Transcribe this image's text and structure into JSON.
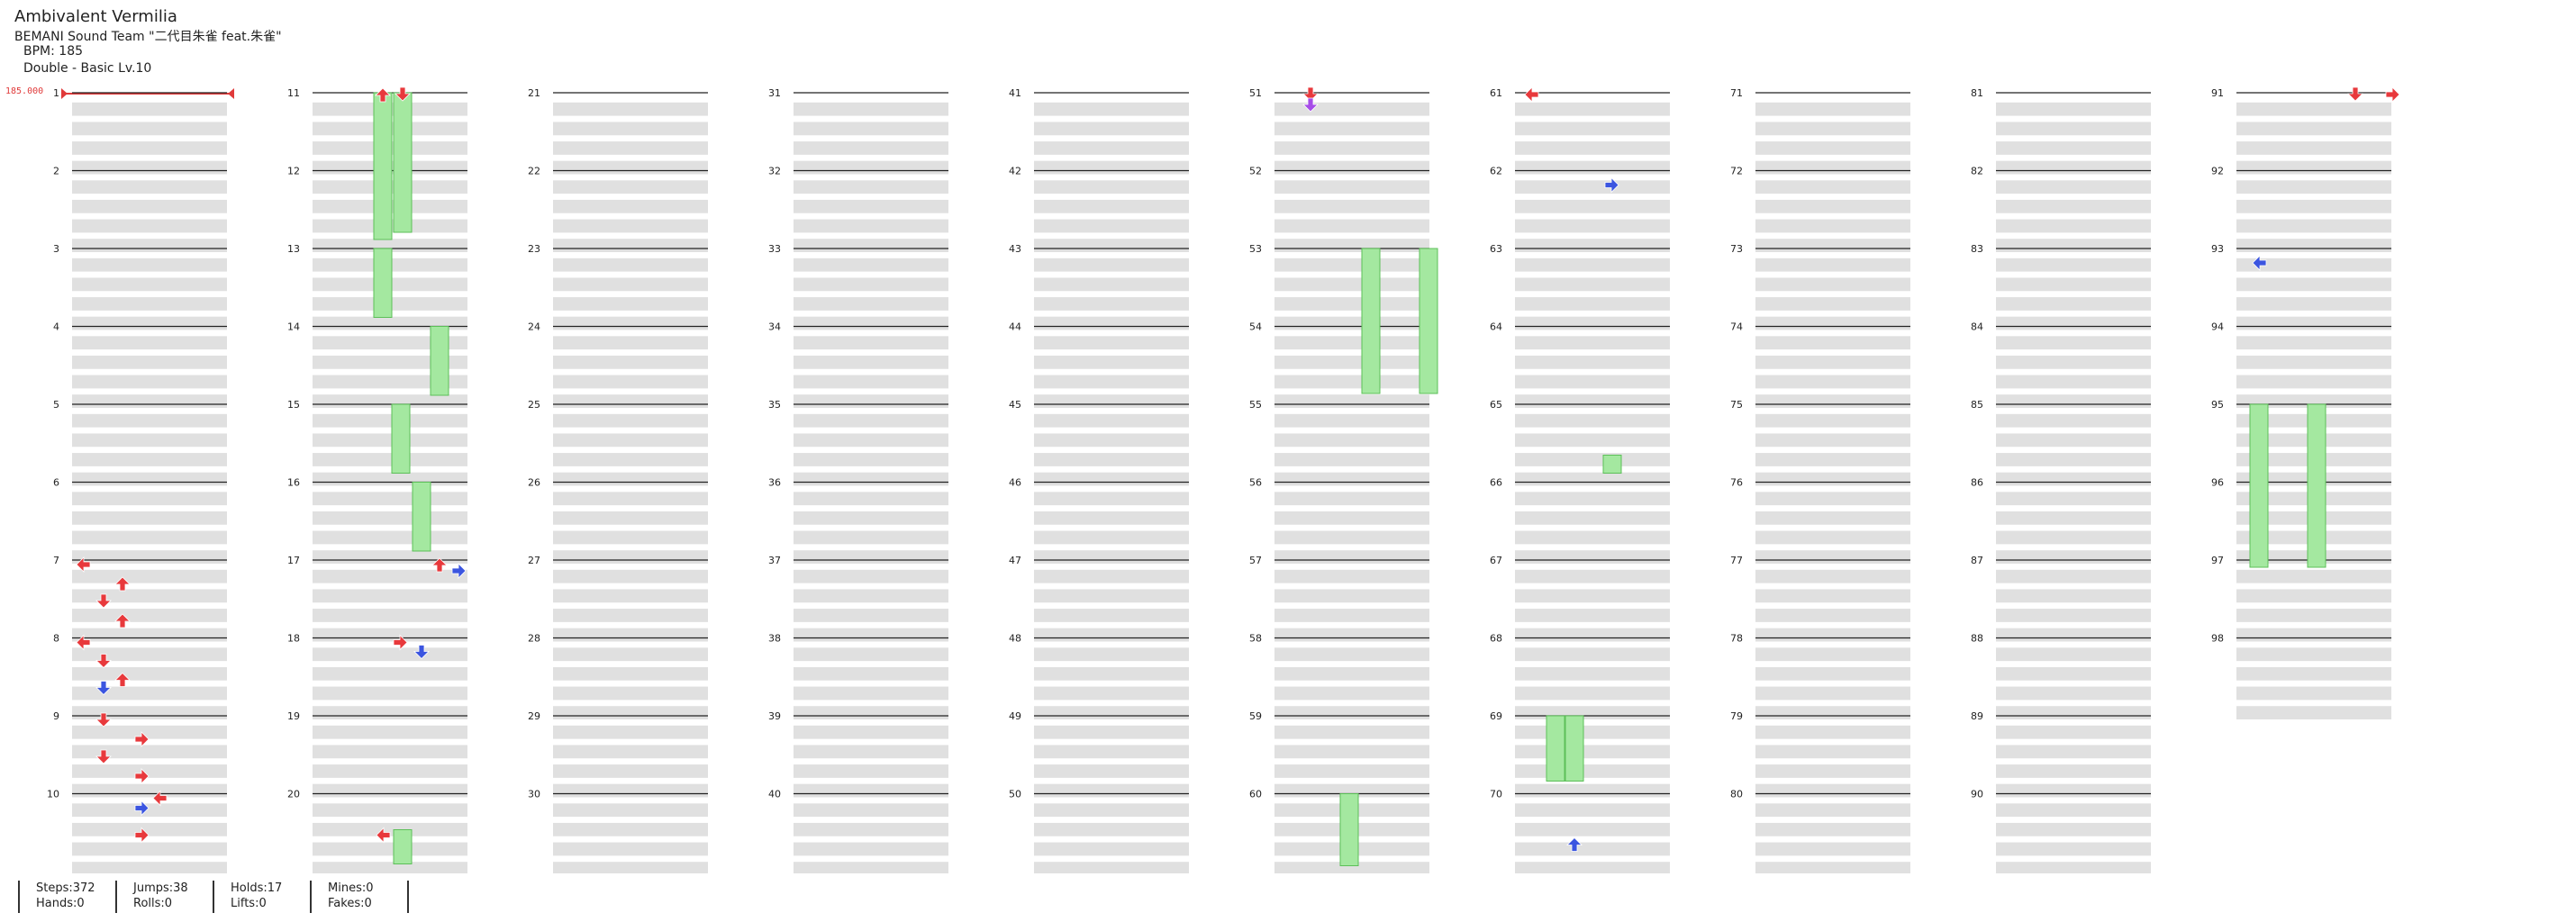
{
  "song": {
    "title": "Ambivalent Vermilia",
    "artist": "BEMANI Sound Team \"二代目朱雀 feat.朱雀\"",
    "bpm_label": "BPM: 185",
    "difficulty": "Double - Basic  Lv.10",
    "bpm_marker": "185.000"
  },
  "measure_numbers": [
    1,
    2,
    3,
    4,
    5,
    6,
    7,
    8,
    9,
    10,
    11,
    12,
    13,
    14,
    15,
    16,
    17,
    18,
    19,
    20,
    21,
    22,
    23,
    24,
    25,
    26,
    27,
    28,
    29,
    30,
    31,
    32,
    33,
    34,
    35,
    36,
    37,
    38,
    39,
    40,
    41,
    42,
    43,
    44,
    45,
    46,
    47,
    48,
    49,
    50,
    51,
    52,
    53,
    54,
    55,
    56,
    57,
    58,
    59,
    60,
    61,
    62,
    63,
    64,
    65,
    66,
    67,
    68,
    69,
    70,
    71,
    72,
    73,
    74,
    75,
    76,
    77,
    78,
    79,
    80,
    81,
    82,
    83,
    84,
    85,
    86,
    87,
    88,
    89,
    90,
    91,
    92,
    93,
    94,
    95,
    96,
    97,
    98
  ],
  "colors": {
    "quarter": "#e8393c",
    "eighth": "#3b55e0",
    "sixteenth": "#a64de8",
    "hold": "#a4e8a0",
    "hold_border": "#5cbf58"
  },
  "stats": {
    "steps": "Steps:372",
    "hands": "Hands:0",
    "jumps": "Jumps:38",
    "rolls": "Rolls:0",
    "holds": "Holds:17",
    "lifts": "Lifts:0",
    "mines": "Mines:0",
    "fakes": "Fakes:0"
  }
}
